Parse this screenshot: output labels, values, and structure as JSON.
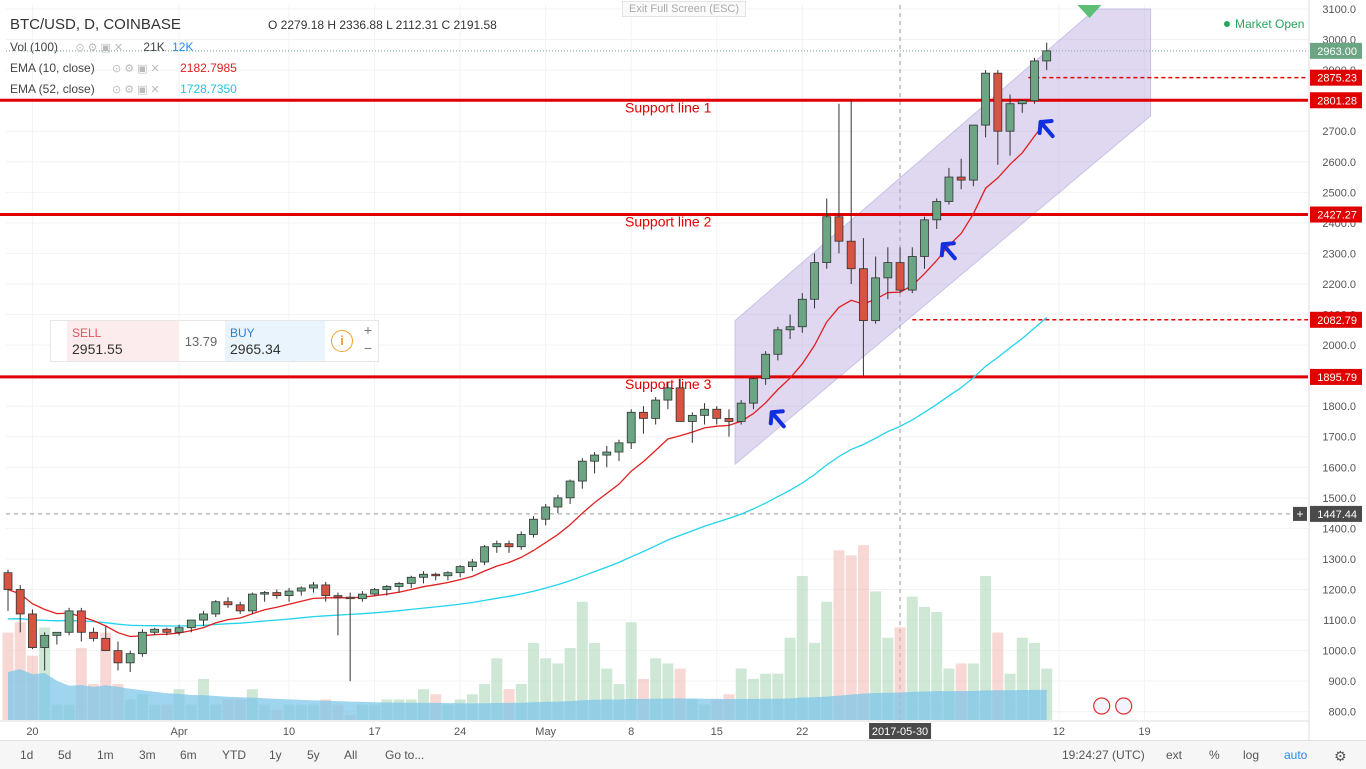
{
  "header": {
    "symbol_title": "BTC/USD, D, COINBASE",
    "ohlc": "O 2279.18  H 2336.88  L 2112.31  C 2191.58",
    "indicators": [
      {
        "label": "Vol (100)",
        "value": "21K",
        "value2": "12K"
      },
      {
        "label": "EMA (10, close)",
        "value": "2182.7985"
      },
      {
        "label": "EMA (52, close)",
        "value": "1728.7350"
      }
    ],
    "exit_fullscreen": "Exit Full Screen (ESC)",
    "market_status": "Market Open"
  },
  "trade_widget": {
    "sell_label": "SELL",
    "sell_price": "2951.55",
    "spread": "13.79",
    "buy_label": "BUY",
    "buy_price": "2965.34"
  },
  "annotations": {
    "support_lines": [
      {
        "label": "Support line 1",
        "price": 2801.28
      },
      {
        "label": "Support line 2",
        "price": 2427.27
      },
      {
        "label": "Support line 3",
        "price": 1895.79
      }
    ],
    "dashed_levels": [
      2875.23,
      2082.79
    ],
    "crosshair_price": 1447.44,
    "current_price": 2963.0
  },
  "toolbar": {
    "timeframes": [
      "1d",
      "5d",
      "1m",
      "3m",
      "6m",
      "YTD",
      "1y",
      "5y",
      "All",
      "Go to..."
    ],
    "utc_time": "19:24:27 (UTC)",
    "right_buttons": [
      "ext",
      "%",
      "log",
      "auto"
    ]
  },
  "colors": {
    "up": "#6ba583",
    "down": "#d75442",
    "up_fill": "#a8d5b5",
    "down_fill": "#f0b8b0",
    "ema10": "#e02020",
    "ema52": "#22d3ee",
    "support": "#e00000",
    "channel": "#8c7ac8",
    "arrow": "#1030e0",
    "volume_ma": "#7fc7e8"
  },
  "chart_data": {
    "type": "candlestick",
    "title": "BTC/USD, D, COINBASE",
    "ylim": [
      750,
      3100
    ],
    "y_ticks": [
      800,
      900,
      1000,
      1100,
      1200,
      1300,
      1400,
      1500,
      1600,
      1700,
      1800,
      1900,
      2000,
      2100,
      2200,
      2300,
      2400,
      2500,
      2600,
      2700,
      2800,
      2900,
      3000,
      3100
    ],
    "x_ticks": [
      {
        "label": "20",
        "day": 2
      },
      {
        "label": "Apr",
        "day": 14
      },
      {
        "label": "10",
        "day": 23
      },
      {
        "label": "17",
        "day": 30
      },
      {
        "label": "24",
        "day": 37
      },
      {
        "label": "May",
        "day": 44
      },
      {
        "label": "8",
        "day": 51
      },
      {
        "label": "15",
        "day": 58
      },
      {
        "label": "22",
        "day": 65
      },
      {
        "label": "2017-05-30",
        "day": 73
      },
      {
        "label": "12",
        "day": 86
      },
      {
        "label": "19",
        "day": 93
      }
    ],
    "candles": [
      [
        1255,
        1265,
        1130,
        1200,
        1700
      ],
      [
        1200,
        1215,
        1060,
        1120,
        1900
      ],
      [
        1120,
        1135,
        1005,
        1010,
        1250
      ],
      [
        1010,
        1060,
        935,
        1050,
        1800
      ],
      [
        1050,
        1060,
        1020,
        1060,
        300
      ],
      [
        1060,
        1140,
        1050,
        1130,
        300
      ],
      [
        1130,
        1140,
        1030,
        1060,
        1400
      ],
      [
        1060,
        1075,
        1030,
        1040,
        700
      ],
      [
        1040,
        1080,
        1020,
        1000,
        1700
      ],
      [
        1000,
        1030,
        935,
        960,
        700
      ],
      [
        960,
        1000,
        930,
        990,
        400
      ],
      [
        990,
        1070,
        980,
        1060,
        500
      ],
      [
        1060,
        1075,
        1050,
        1070,
        300
      ],
      [
        1070,
        1075,
        1050,
        1060,
        300
      ],
      [
        1060,
        1085,
        1050,
        1075,
        600
      ],
      [
        1075,
        1100,
        1060,
        1100,
        300
      ],
      [
        1100,
        1130,
        1080,
        1120,
        800
      ],
      [
        1120,
        1165,
        1110,
        1160,
        300
      ],
      [
        1160,
        1175,
        1140,
        1150,
        400
      ],
      [
        1150,
        1160,
        1120,
        1130,
        400
      ],
      [
        1130,
        1190,
        1120,
        1185,
        600
      ],
      [
        1185,
        1195,
        1160,
        1190,
        300
      ],
      [
        1190,
        1200,
        1170,
        1180,
        200
      ],
      [
        1180,
        1205,
        1160,
        1195,
        300
      ],
      [
        1195,
        1210,
        1180,
        1205,
        300
      ],
      [
        1205,
        1225,
        1190,
        1215,
        300
      ],
      [
        1215,
        1225,
        1160,
        1180,
        400
      ],
      [
        1180,
        1190,
        1050,
        1175,
        300
      ],
      [
        1175,
        1190,
        900,
        1170,
        100
      ],
      [
        1170,
        1195,
        1160,
        1185,
        300
      ],
      [
        1185,
        1205,
        1180,
        1200,
        300
      ],
      [
        1200,
        1215,
        1180,
        1210,
        400
      ],
      [
        1210,
        1225,
        1190,
        1220,
        400
      ],
      [
        1220,
        1245,
        1205,
        1240,
        400
      ],
      [
        1240,
        1260,
        1220,
        1250,
        600
      ],
      [
        1250,
        1255,
        1230,
        1245,
        500
      ],
      [
        1245,
        1260,
        1230,
        1255,
        300
      ],
      [
        1255,
        1280,
        1240,
        1275,
        400
      ],
      [
        1275,
        1300,
        1260,
        1290,
        500
      ],
      [
        1290,
        1345,
        1280,
        1340,
        700
      ],
      [
        1340,
        1360,
        1320,
        1350,
        1200
      ],
      [
        1350,
        1360,
        1320,
        1340,
        600
      ],
      [
        1340,
        1390,
        1330,
        1380,
        700
      ],
      [
        1380,
        1440,
        1370,
        1430,
        1500
      ],
      [
        1430,
        1480,
        1410,
        1470,
        1200
      ],
      [
        1470,
        1510,
        1450,
        1500,
        1100
      ],
      [
        1500,
        1560,
        1480,
        1555,
        1400
      ],
      [
        1555,
        1630,
        1530,
        1620,
        2300
      ],
      [
        1620,
        1650,
        1580,
        1640,
        1500
      ],
      [
        1640,
        1670,
        1600,
        1650,
        1000
      ],
      [
        1650,
        1690,
        1620,
        1680,
        700
      ],
      [
        1680,
        1790,
        1660,
        1780,
        1900
      ],
      [
        1780,
        1800,
        1710,
        1760,
        800
      ],
      [
        1760,
        1830,
        1740,
        1820,
        1200
      ],
      [
        1820,
        1880,
        1790,
        1860,
        1100
      ],
      [
        1860,
        1890,
        1760,
        1750,
        1000
      ],
      [
        1750,
        1780,
        1680,
        1770,
        400
      ],
      [
        1770,
        1810,
        1740,
        1790,
        300
      ],
      [
        1790,
        1800,
        1740,
        1760,
        400
      ],
      [
        1760,
        1790,
        1700,
        1750,
        500
      ],
      [
        1750,
        1820,
        1740,
        1810,
        1000
      ],
      [
        1810,
        1900,
        1790,
        1890,
        800
      ],
      [
        1890,
        1980,
        1870,
        1970,
        900
      ],
      [
        1970,
        2060,
        1950,
        2050,
        900
      ],
      [
        2050,
        2100,
        2020,
        2060,
        1600
      ],
      [
        2060,
        2170,
        2040,
        2150,
        2800
      ],
      [
        2150,
        2300,
        2120,
        2270,
        1500
      ],
      [
        2270,
        2480,
        2250,
        2420,
        2300
      ],
      [
        2420,
        2790,
        2300,
        2340,
        3300
      ],
      [
        2340,
        2800,
        2200,
        2250,
        3200
      ],
      [
        2250,
        2350,
        1900,
        2080,
        3400
      ],
      [
        2080,
        2290,
        2070,
        2220,
        2500
      ],
      [
        2220,
        2320,
        2150,
        2270,
        1600
      ],
      [
        2270,
        2320,
        2170,
        2180,
        1800
      ],
      [
        2180,
        2320,
        2170,
        2290,
        2400
      ],
      [
        2290,
        2420,
        2250,
        2410,
        2200
      ],
      [
        2410,
        2480,
        2380,
        2470,
        2100
      ],
      [
        2470,
        2580,
        2460,
        2550,
        1000
      ],
      [
        2550,
        2610,
        2510,
        2540,
        1100
      ],
      [
        2540,
        2720,
        2520,
        2720,
        1100
      ],
      [
        2720,
        2900,
        2680,
        2890,
        2800
      ],
      [
        2890,
        2900,
        2590,
        2700,
        1700
      ],
      [
        2700,
        2820,
        2620,
        2790,
        900
      ],
      [
        2790,
        2800,
        2760,
        2800,
        1600
      ],
      [
        2800,
        2940,
        2790,
        2930,
        1500
      ],
      [
        2930,
        2990,
        2900,
        2963,
        1000
      ]
    ],
    "ema10_note": "computed from close",
    "ema52_note": "computed from close"
  }
}
